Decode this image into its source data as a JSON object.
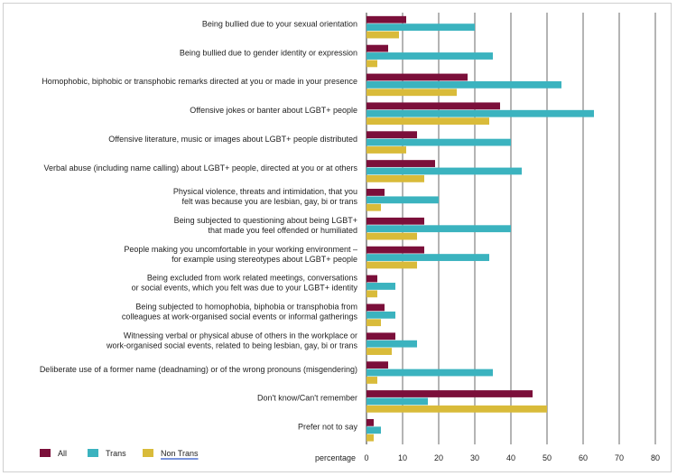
{
  "chart_data": {
    "type": "bar",
    "orientation": "horizontal",
    "xlabel": "percentage",
    "xlim": [
      0,
      80
    ],
    "xticks": [
      "0",
      "10",
      "20",
      "30",
      "40",
      "50",
      "60",
      "70",
      "80"
    ],
    "grid": true,
    "legend_position": "bottom-left",
    "categories": [
      [
        "Being bullied due to your sexual orientation"
      ],
      [
        "Being bullied  due to gender identity  or expression"
      ],
      [
        "Homophobic, biphobic or transphobic remarks directed at you or made in your presence"
      ],
      [
        "Offensive jokes or banter about LGBT+ people"
      ],
      [
        "Offensive literature, music or images about LGBT+ people distributed"
      ],
      [
        "Verbal abuse (including name calling) about LGBT+ people, directed at you or at others"
      ],
      [
        "Physical violence, threats and intimidation, that you",
        "felt was because you are lesbian, gay, bi or trans"
      ],
      [
        "Being subjected to questioning about being LGBT+",
        "that made you feel offended or humiliated"
      ],
      [
        "People making you uncomfortable  in your working environment –",
        "for example using stereotypes about LGBT+ people"
      ],
      [
        "Being excluded from work related meetings, conversations",
        "or social events, which you felt was due to your LGBT+ identity"
      ],
      [
        "Being subjected to homophobia, biphobia or transphobia from",
        "colleagues at work-organised  social events or informal gatherings"
      ],
      [
        "Witnessing verbal or physical abuse of others in the workplace or",
        "work-organised social events, related to being lesbian, gay, bi or trans"
      ],
      [
        "Deliberate use of a former name (deadnaming) or of the wrong pronouns (misgendering)"
      ],
      [
        "Don't know/Can't remember"
      ],
      [
        "Prefer not to say"
      ]
    ],
    "series": [
      {
        "name": "All",
        "color": "#7b0f3a",
        "values": [
          11,
          6,
          28,
          37,
          14,
          19,
          5,
          16,
          16,
          3,
          5,
          8,
          6,
          46,
          2
        ]
      },
      {
        "name": "Trans",
        "color": "#3bb3bf",
        "values": [
          30,
          35,
          54,
          63,
          40,
          43,
          20,
          40,
          34,
          8,
          8,
          14,
          35,
          17,
          4
        ]
      },
      {
        "name": "Non Trans",
        "color": "#d9bb3a",
        "values": [
          9,
          3,
          25,
          34,
          11,
          16,
          4,
          14,
          14,
          3,
          4,
          7,
          3,
          50,
          2
        ]
      }
    ]
  }
}
